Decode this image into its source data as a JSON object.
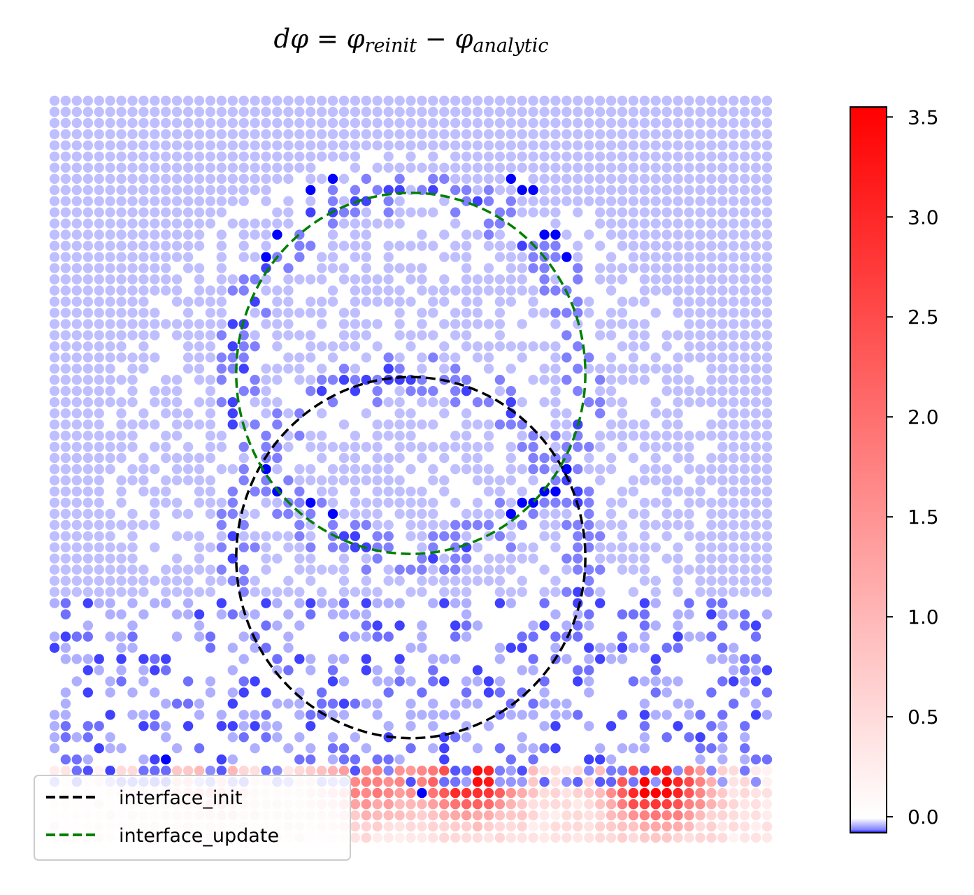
{
  "chart_data": {
    "type": "scatter",
    "title": {
      "main_lhs": "dφ",
      "equals": " = ",
      "phi1": "φ",
      "sub1": "reinit",
      "minus": " − ",
      "phi2": "φ",
      "sub2": "analytic"
    },
    "grid_points": {
      "nx": 65,
      "ny": 67,
      "x_range": [
        0,
        1
      ],
      "y_range": [
        0,
        1
      ]
    },
    "colorbar": {
      "range": [
        -0.08,
        3.55
      ],
      "ticks": [
        "0.0",
        "0.5",
        "1.0",
        "1.5",
        "2.0",
        "2.5",
        "3.0",
        "3.5"
      ],
      "tick_values": [
        0.0,
        0.5,
        1.0,
        1.5,
        2.0,
        2.5,
        3.0,
        3.5
      ],
      "colors": [
        "#0000ff",
        "#ffffff",
        "#ff0000"
      ]
    },
    "curves": [
      {
        "name": "interface_init",
        "center": [
          0.5,
          0.38
        ],
        "radius": 0.245,
        "color": "#000000",
        "style": "dashed"
      },
      {
        "name": "interface_update",
        "center": [
          0.5,
          0.63
        ],
        "radius": 0.245,
        "color": "#008000",
        "style": "dashed"
      }
    ],
    "hotspots_positive": [
      {
        "x": 0.585,
        "y": 0.08,
        "value": 3.3
      },
      {
        "x": 0.845,
        "y": 0.07,
        "value": 3.55
      },
      {
        "x": 0.44,
        "y": 0.075,
        "value": 1.6
      },
      {
        "x": 0.22,
        "y": 0.07,
        "value": 0.8
      }
    ],
    "strong_negative_points": [
      [
        0.365,
        0.88
      ],
      [
        0.395,
        0.9
      ],
      [
        0.635,
        0.9
      ],
      [
        0.665,
        0.88
      ],
      [
        0.315,
        0.82
      ],
      [
        0.295,
        0.79
      ],
      [
        0.695,
        0.82
      ],
      [
        0.715,
        0.79
      ],
      [
        0.295,
        0.505
      ],
      [
        0.315,
        0.475
      ],
      [
        0.365,
        0.455
      ],
      [
        0.395,
        0.44
      ],
      [
        0.635,
        0.44
      ],
      [
        0.665,
        0.455
      ],
      [
        0.695,
        0.475
      ],
      [
        0.715,
        0.505
      ],
      [
        0.15,
        0.105
      ],
      [
        0.52,
        0.065
      ]
    ]
  },
  "legend": {
    "items": [
      {
        "label": "interface_init",
        "color": "#000000"
      },
      {
        "label": "interface_update",
        "color": "#008000"
      }
    ]
  }
}
